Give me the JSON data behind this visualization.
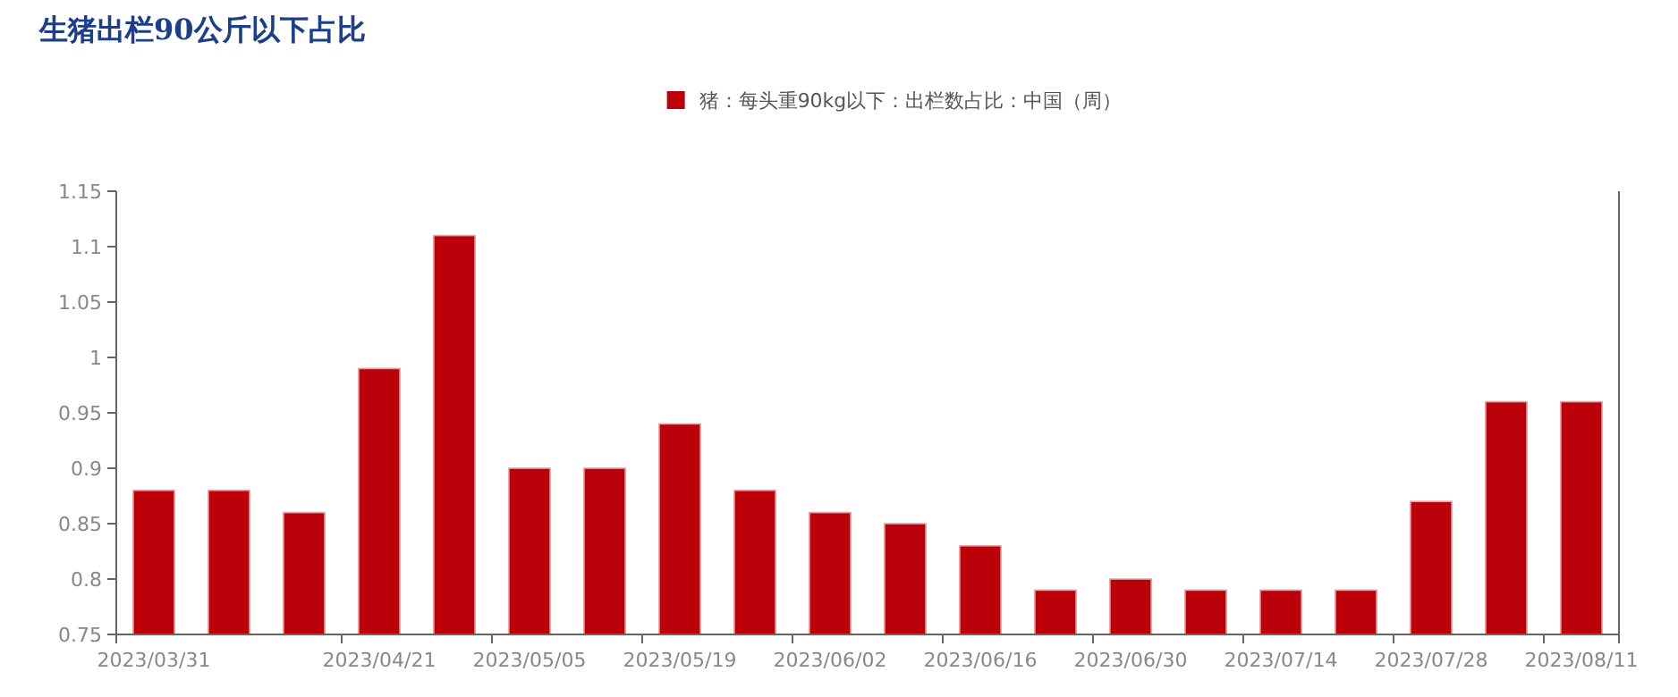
{
  "chart_data": {
    "type": "bar",
    "title": "生猪出栏90公斤以下占比",
    "categories": [
      "2023/03/31",
      null,
      null,
      "2023/04/21",
      null,
      "2023/05/05",
      null,
      "2023/05/19",
      null,
      "2023/06/02",
      null,
      "2023/06/16",
      null,
      "2023/06/30",
      null,
      "2023/07/14",
      null,
      "2023/07/28",
      null,
      "2023/08/11"
    ],
    "series": [
      {
        "name": "猪：每头重90kg以下：出栏数占比：中国（周）",
        "color": "#bb0009",
        "values": [
          0.88,
          0.88,
          0.86,
          0.99,
          1.11,
          0.9,
          0.9,
          0.94,
          0.88,
          0.86,
          0.85,
          0.83,
          0.79,
          0.8,
          0.79,
          0.79,
          0.79,
          0.87,
          0.96,
          0.96
        ]
      }
    ],
    "ylim": [
      0.75,
      1.15
    ],
    "yticks": [
      0.75,
      0.8,
      0.85,
      0.9,
      0.95,
      1,
      1.05,
      1.1,
      1.15
    ],
    "grid": false,
    "legend": "top"
  }
}
